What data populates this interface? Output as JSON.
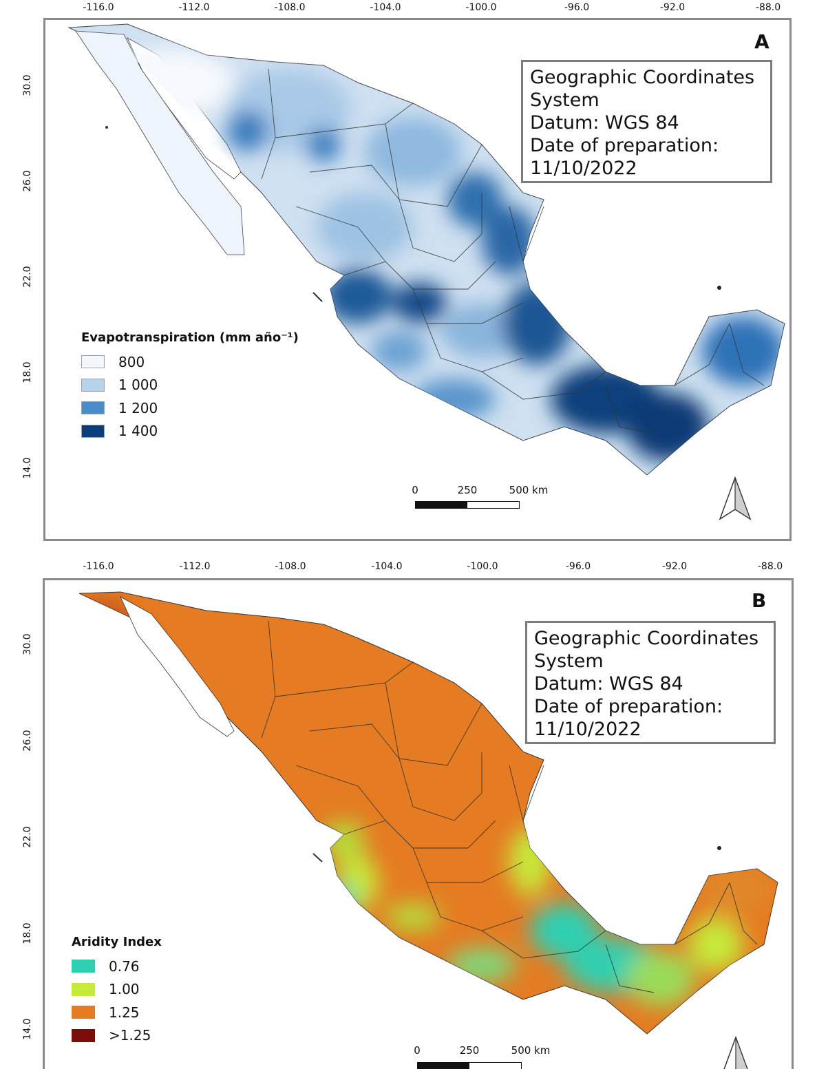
{
  "x_ticks": [
    "-116.0",
    "-112.0",
    "-108.0",
    "-104.0",
    "-100.0",
    "-96.0",
    "-92.0",
    "-88.0"
  ],
  "y_ticks": [
    "30.0",
    "26.0",
    "22.0",
    "18.0",
    "14.0"
  ],
  "panels": [
    {
      "letter": "A",
      "info": {
        "line1": "Geographic Coordinates",
        "line2": "System",
        "line3": "Datum: WGS 84",
        "line4": "Date of preparation:",
        "line5": "11/10/2022"
      },
      "legend": {
        "title": "Evapotranspiration (mm año⁻¹)",
        "items": [
          {
            "label": "800",
            "color": "#f4f7fb"
          },
          {
            "label": "1 000",
            "color": "#b7d3ec"
          },
          {
            "label": "1 200",
            "color": "#4a8cc8"
          },
          {
            "label": "1 400",
            "color": "#0b3f7a"
          }
        ]
      },
      "scale": {
        "l0": "0",
        "l1": "250",
        "l2": "500 km"
      }
    },
    {
      "letter": "B",
      "info": {
        "line1": "Geographic Coordinates",
        "line2": "System",
        "line3": "Datum: WGS 84",
        "line4": "Date of preparation:",
        "line5": "11/10/2022"
      },
      "legend": {
        "title": "Aridity Index",
        "items": [
          {
            "label": "0.76",
            "color": "#2fcfb3"
          },
          {
            "label": "1.00",
            "color": "#c6ea3a"
          },
          {
            "label": "1.25",
            "color": "#e57b22"
          },
          {
            "label": ">1.25",
            "color": "#7a0c0c"
          }
        ]
      },
      "scale": {
        "l0": "0",
        "l1": "250",
        "l2": "500 km"
      }
    }
  ]
}
